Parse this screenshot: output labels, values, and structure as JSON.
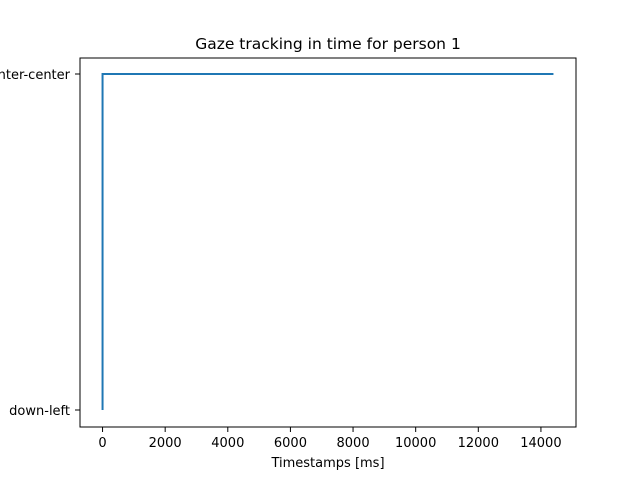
{
  "chart_data": {
    "type": "line",
    "title": "Gaze tracking in time for person 1",
    "xlabel": "Timestamps [ms]",
    "ylabel": "",
    "xlim": [
      -720,
      15120
    ],
    "x_ticks": [
      0,
      2000,
      4000,
      6000,
      8000,
      10000,
      12000,
      14000
    ],
    "y_categories": [
      "down-left",
      "center-center"
    ],
    "y_tick_labels": [
      "down-left",
      "center-center"
    ],
    "grid": false,
    "legend": "none",
    "series": [
      {
        "color": "#1f77b4",
        "x": [
          0,
          0,
          14400
        ],
        "y": [
          "down-left",
          "center-center",
          "center-center"
        ]
      }
    ]
  }
}
